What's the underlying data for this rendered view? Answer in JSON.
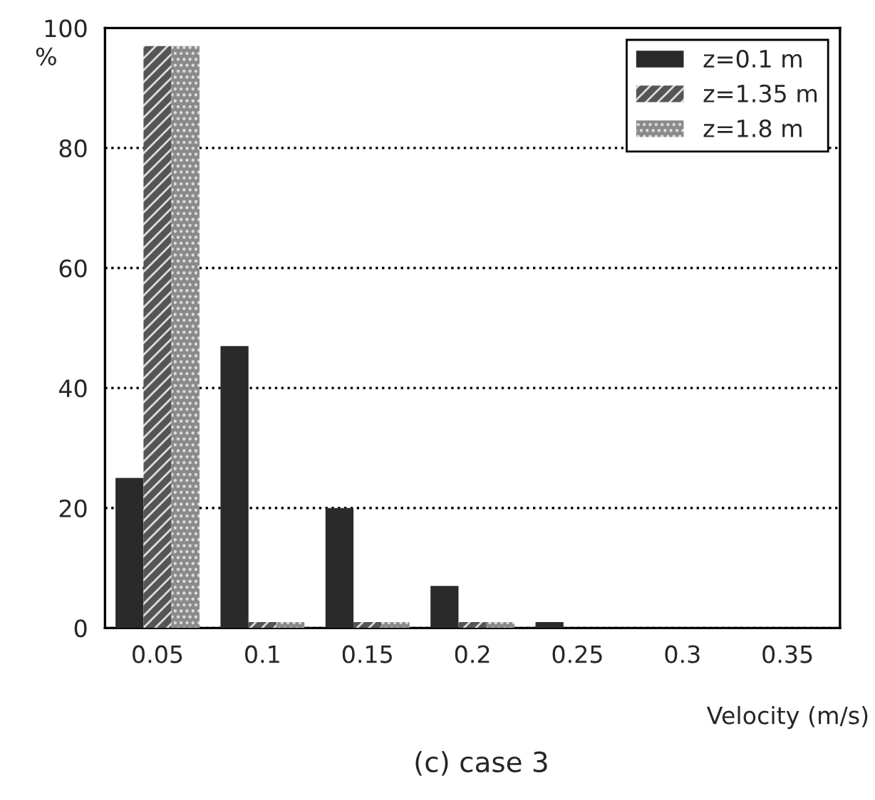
{
  "chart_data": {
    "type": "bar",
    "categories": [
      "0.05",
      "0.1",
      "0.15",
      "0.2",
      "0.25",
      "0.3",
      "0.35"
    ],
    "series": [
      {
        "name": "z=0.1 m",
        "color": "#2a2a2a",
        "values": [
          25,
          47,
          20,
          7,
          1,
          0,
          0
        ]
      },
      {
        "name": "z=1.35 m",
        "color": "#555555",
        "values": [
          97,
          1,
          1,
          1,
          0,
          0,
          0
        ]
      },
      {
        "name": "z=1.8 m",
        "color": "#8a8a8a",
        "values": [
          97,
          1,
          1,
          1,
          0,
          0,
          0
        ]
      }
    ],
    "ylabel": "%",
    "xlabel": "Velocity (m/s)",
    "annotations": [
      "(c) case 3"
    ],
    "ylim": [
      0,
      100
    ],
    "yticks": [
      0,
      20,
      40,
      60,
      80,
      100
    ],
    "grid": "y",
    "legend": "top right"
  }
}
